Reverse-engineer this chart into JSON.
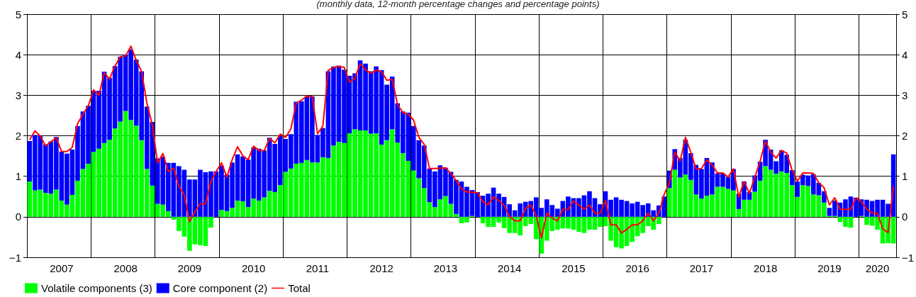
{
  "chart_data": {
    "type": "bar",
    "subtitle": "(monthly data, 12-month percentage changes and percentage points)",
    "stacked": true,
    "grid": true,
    "legend": "bottom left",
    "marker": "none",
    "categories": [
      null,
      null,
      null,
      null,
      null,
      null,
      "2007",
      null,
      null,
      null,
      null,
      null,
      null,
      null,
      null,
      null,
      null,
      null,
      "2008",
      null,
      null,
      null,
      null,
      null,
      null,
      null,
      null,
      null,
      null,
      null,
      "2009",
      null,
      null,
      null,
      null,
      null,
      null,
      null,
      null,
      null,
      null,
      null,
      "2010",
      null,
      null,
      null,
      null,
      null,
      null,
      null,
      null,
      null,
      null,
      null,
      "2011",
      null,
      null,
      null,
      null,
      null,
      null,
      null,
      null,
      null,
      null,
      null,
      "2012",
      null,
      null,
      null,
      null,
      null,
      null,
      null,
      null,
      null,
      null,
      null,
      "2013",
      null,
      null,
      null,
      null,
      null,
      null,
      null,
      null,
      null,
      null,
      null,
      "2014",
      null,
      null,
      null,
      null,
      null,
      null,
      null,
      null,
      null,
      null,
      null,
      "2015",
      null,
      null,
      null,
      null,
      null,
      null,
      null,
      null,
      null,
      null,
      null,
      "2016",
      null,
      null,
      null,
      null,
      null,
      null,
      null,
      null,
      null,
      null,
      null,
      "2017",
      null,
      null,
      null,
      null,
      null,
      null,
      null,
      null,
      null,
      null,
      null,
      "2018",
      null,
      null,
      null,
      null,
      null,
      null,
      null,
      null,
      null,
      null,
      null,
      "2019",
      null,
      null,
      null,
      null,
      null,
      null,
      null,
      null,
      "2020",
      null,
      null,
      null
    ],
    "ylim": [
      -1,
      5
    ],
    "yticks": [
      {
        "value": -1,
        "label": "−1"
      },
      0,
      1,
      2,
      3,
      4,
      5
    ],
    "y2lim": [
      -1,
      5
    ],
    "y2ticks": [
      {
        "value": -1,
        "label": "−1"
      },
      0,
      1,
      2,
      3,
      4,
      5
    ],
    "series": [
      {
        "name": "Volatile components (3)",
        "color": "#00ff00",
        "values": [
          0.87,
          0.65,
          0.67,
          0.59,
          0.57,
          0.67,
          0.4,
          0.3,
          0.54,
          0.89,
          1.18,
          1.31,
          1.6,
          1.68,
          1.82,
          1.9,
          2.18,
          2.35,
          2.61,
          2.39,
          2.25,
          1.89,
          1.18,
          0.77,
          0.32,
          0.3,
          0.14,
          -0.07,
          -0.35,
          -0.49,
          -0.84,
          -0.68,
          -0.7,
          -0.72,
          -0.27,
          0,
          0.17,
          0.14,
          0.22,
          0.4,
          0.38,
          0.24,
          0.45,
          0.4,
          0.48,
          0.64,
          0.61,
          0.78,
          1.11,
          1.19,
          1.31,
          1.33,
          1.4,
          1.34,
          1.34,
          1.47,
          1.45,
          1.76,
          1.85,
          1.82,
          2.06,
          2.16,
          2.13,
          2.13,
          2.05,
          2.06,
          1.78,
          1.89,
          2.16,
          1.83,
          1.57,
          1.38,
          1.14,
          0.95,
          0.71,
          0.36,
          0.24,
          0.43,
          0.51,
          0.32,
          0.07,
          -0.16,
          -0.14,
          0.02,
          0,
          -0.16,
          -0.25,
          -0.25,
          -0.14,
          -0.28,
          -0.4,
          -0.4,
          -0.46,
          -0.23,
          -0.18,
          -0.55,
          -0.91,
          -0.59,
          -0.35,
          -0.32,
          -0.29,
          -0.29,
          -0.32,
          -0.37,
          -0.4,
          -0.32,
          -0.32,
          -0.25,
          -0.23,
          -0.59,
          -0.75,
          -0.78,
          -0.72,
          -0.62,
          -0.48,
          -0.4,
          -0.23,
          -0.32,
          -0.18,
          0,
          0.71,
          1.16,
          0.97,
          1.04,
          0.91,
          0.55,
          0.45,
          0.52,
          0.55,
          0.74,
          0.74,
          0.69,
          0.65,
          0.19,
          0.42,
          0.42,
          0.62,
          0.89,
          1.25,
          1.16,
          1.06,
          1.12,
          1.08,
          0.78,
          0.49,
          0.78,
          0.76,
          0.55,
          0.53,
          0.35,
          0.02,
          0.02,
          -0.13,
          -0.25,
          -0.27,
          0,
          0.02,
          -0.2,
          -0.22,
          -0.32,
          -0.66,
          -0.65,
          -0.66
        ]
      },
      {
        "name": "Core component (2)",
        "color": "#0000ff",
        "values": [
          1.0,
          1.37,
          1.33,
          1.2,
          1.29,
          1.3,
          1.21,
          1.26,
          1.12,
          1.35,
          1.42,
          1.43,
          1.51,
          1.43,
          1.76,
          1.53,
          1.54,
          1.6,
          1.39,
          1.74,
          1.63,
          1.7,
          1.54,
          1.57,
          1.12,
          1.18,
          1.19,
          1.33,
          1.25,
          1.16,
          0.92,
          0.92,
          1.16,
          1.1,
          1.12,
          1.12,
          1.09,
          0.9,
          1.12,
          1.14,
          1.11,
          1.17,
          1.26,
          1.28,
          1.16,
          1.31,
          1.19,
          1.21,
          0.81,
          0.85,
          1.53,
          1.52,
          1.57,
          1.63,
          0.68,
          0.72,
          2.14,
          1.95,
          1.88,
          1.81,
          1.42,
          1.38,
          1.73,
          1.65,
          1.54,
          1.65,
          1.84,
          1.37,
          1.3,
          0.97,
          1.03,
          1.19,
          1.1,
          0.94,
          1.05,
          0.83,
          0.88,
          0.84,
          0.7,
          0.79,
          0.84,
          0.87,
          0.74,
          0.64,
          0.61,
          0.52,
          0.57,
          0.72,
          0.57,
          0.49,
          0.31,
          0.16,
          0.33,
          0.37,
          0.39,
          0.48,
          0.22,
          0.43,
          0.29,
          0.2,
          0.39,
          0.5,
          0.46,
          0.46,
          0.53,
          0.63,
          0.46,
          0.31,
          0.63,
          0.42,
          0.48,
          0.42,
          0.39,
          0.33,
          0.37,
          0.29,
          0.33,
          0.16,
          0.28,
          0.5,
          0.43,
          0.51,
          0.48,
          0.86,
          0.66,
          0.73,
          0.73,
          0.93,
          0.79,
          0.33,
          0.33,
          0.29,
          0.53,
          0.38,
          0.45,
          0.19,
          0.4,
          0.47,
          0.65,
          0.5,
          0.31,
          0.52,
          0.45,
          0.37,
          0.38,
          0.26,
          0.26,
          0.5,
          0.31,
          0.28,
          0.2,
          0.38,
          0.35,
          0.43,
          0.5,
          0.47,
          0.41,
          0.42,
          0.39,
          0.42,
          0.42,
          0.32,
          1.54
        ]
      },
      {
        "name": "Total",
        "type": "line",
        "color": "#ff0000",
        "values": [
          1.9,
          2.12,
          1.99,
          1.75,
          1.85,
          1.95,
          1.61,
          1.61,
          1.71,
          2.3,
          2.53,
          2.74,
          3.13,
          3.0,
          3.55,
          3.4,
          3.72,
          3.95,
          3.97,
          4.21,
          3.86,
          3.59,
          2.8,
          2.28,
          1.33,
          1.56,
          1.12,
          1.2,
          0.75,
          0.55,
          -0.12,
          0.12,
          0.32,
          0.32,
          0.87,
          1.12,
          1.33,
          0.98,
          1.41,
          1.73,
          1.5,
          1.41,
          1.74,
          1.64,
          1.63,
          1.93,
          1.83,
          2.04,
          1.96,
          2.17,
          2.8,
          2.88,
          2.98,
          2.97,
          2.05,
          2.24,
          3.61,
          3.69,
          3.71,
          3.69,
          3.32,
          3.42,
          3.77,
          3.63,
          3.54,
          3.62,
          3.58,
          3.37,
          3.39,
          2.77,
          2.57,
          2.53,
          2.39,
          1.96,
          1.79,
          1.19,
          1.19,
          1.2,
          1.21,
          1.07,
          0.89,
          0.69,
          0.61,
          0.61,
          0.59,
          0.37,
          0.3,
          0.49,
          0.4,
          0.29,
          0.0,
          -0.1,
          -0.1,
          0.2,
          0.29,
          0.03,
          -0.52,
          0.09,
          -0.03,
          -0.1,
          0.18,
          0.18,
          0.39,
          0.29,
          0.19,
          0.29,
          0.09,
          0.09,
          0.4,
          -0.2,
          -0.2,
          -0.4,
          -0.31,
          -0.2,
          -0.2,
          -0.1,
          0.09,
          -0.1,
          0.09,
          0.55,
          0.84,
          1.6,
          1.38,
          1.96,
          1.59,
          1.18,
          1.19,
          1.4,
          1.28,
          1.08,
          1.08,
          0.98,
          1.18,
          0.49,
          0.87,
          0.58,
          0.98,
          1.37,
          1.87,
          1.59,
          1.45,
          1.64,
          1.57,
          1.15,
          0.88,
          1.08,
          1.08,
          1.07,
          0.84,
          0.72,
          0.29,
          0.47,
          0.19,
          0.18,
          0.18,
          0.47,
          0.37,
          0.19,
          0.09,
          0.09,
          -0.3,
          -0.39,
          0.75
        ]
      }
    ]
  }
}
